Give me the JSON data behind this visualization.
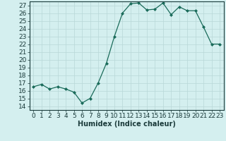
{
  "x": [
    0,
    1,
    2,
    3,
    4,
    5,
    6,
    7,
    8,
    9,
    10,
    11,
    12,
    13,
    14,
    15,
    16,
    17,
    18,
    19,
    20,
    21,
    22,
    23
  ],
  "y": [
    16.5,
    16.8,
    16.2,
    16.5,
    16.2,
    15.8,
    14.4,
    15.0,
    17.0,
    19.5,
    23.0,
    26.0,
    27.2,
    27.3,
    26.4,
    26.5,
    27.3,
    25.8,
    26.8,
    26.3,
    26.3,
    24.2,
    22.0,
    22.0
  ],
  "xlabel": "Humidex (Indice chaleur)",
  "ylim": [
    13.5,
    27.5
  ],
  "xlim": [
    -0.5,
    23.5
  ],
  "yticks": [
    14,
    15,
    16,
    17,
    18,
    19,
    20,
    21,
    22,
    23,
    24,
    25,
    26,
    27
  ],
  "xticks": [
    0,
    1,
    2,
    3,
    4,
    5,
    6,
    7,
    8,
    9,
    10,
    11,
    12,
    13,
    14,
    15,
    16,
    17,
    18,
    19,
    20,
    21,
    22,
    23
  ],
  "line_color": "#1a6b5a",
  "marker_color": "#1a6b5a",
  "bg_color": "#d4efef",
  "grid_color": "#b8d8d8",
  "text_color": "#1a3a3a",
  "xlabel_fontsize": 7,
  "tick_fontsize": 6.5
}
